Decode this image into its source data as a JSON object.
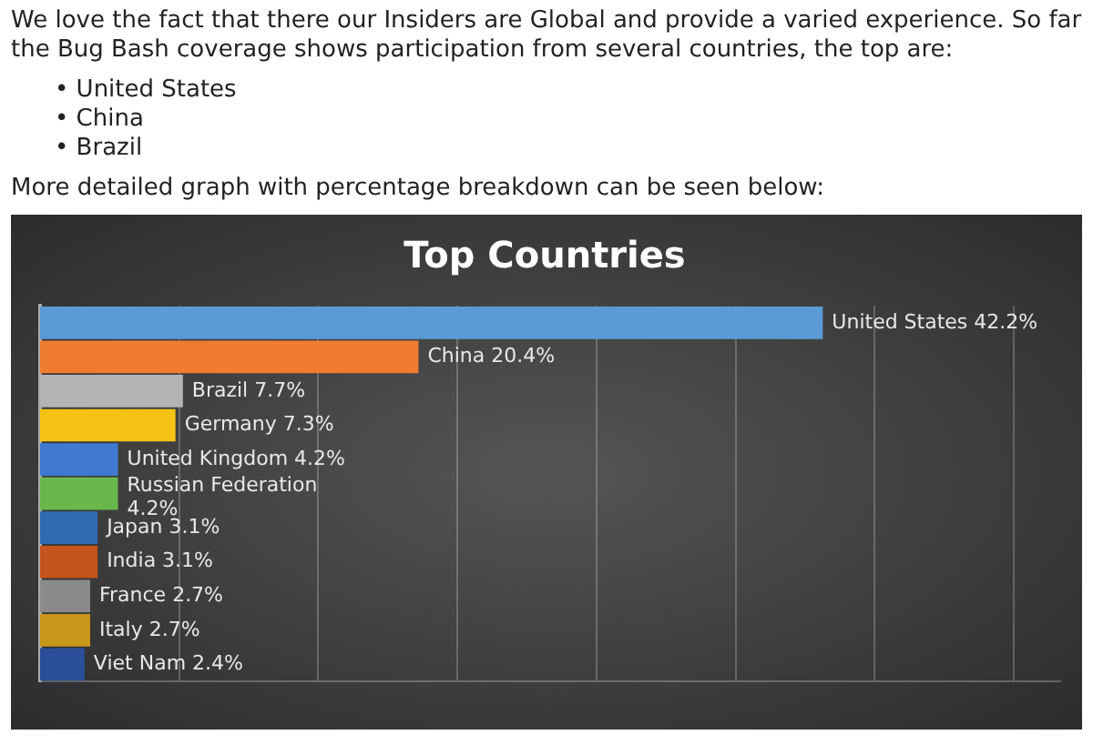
{
  "chart_data": {
    "type": "bar",
    "orientation": "horizontal",
    "title": "Top Countries",
    "annotations": [
      "We love the fact that there our Insiders are Global and provide a varied experience. So far the Bug Bash coverage shows participation from several countries, the top are:",
      "• United States",
      "• China",
      "• Brazil",
      "More detailed graph with percentage breakdown can be seen below:"
    ],
    "categories": [
      null,
      null,
      null,
      null,
      null,
      null,
      null,
      null,
      null,
      null,
      null
    ],
    "values": [
      42.2,
      20.4,
      7.7,
      7.3,
      4.2,
      4.2,
      3.1,
      3.1,
      2.7,
      2.7,
      2.4
    ],
    "value_labels": [
      "United States 42.2%",
      "China 20.4%",
      "Brazil 7.7%",
      "Germany 7.3%",
      "United Kingdom 4.2%",
      "Russian Federation 4.2%",
      "Japan 3.1%",
      "India 3.1%",
      "France 2.7%",
      "Italy 2.7%",
      "Viet Nam 2.4%"
    ],
    "colors": [
      "#5b9bd5",
      "#f07c30",
      "#b4b4b4",
      "#f5c314",
      "#3f7ad0",
      "#6ab84c",
      "#2f6bb0",
      "#c4541c",
      "#8a8a8a",
      "#c9961a",
      "#2a4f98"
    ],
    "xlim": [
      0,
      55
    ],
    "xticks": [
      {
        "value": 7.5,
        "label": null
      },
      {
        "value": 15,
        "label": null
      },
      {
        "value": 22.5,
        "label": null
      },
      {
        "value": 30,
        "label": null
      },
      {
        "value": 37.5,
        "label": null
      },
      {
        "value": 45,
        "label": null
      },
      {
        "value": 52.5,
        "label": null
      }
    ],
    "grid": "x",
    "legend": false
  }
}
